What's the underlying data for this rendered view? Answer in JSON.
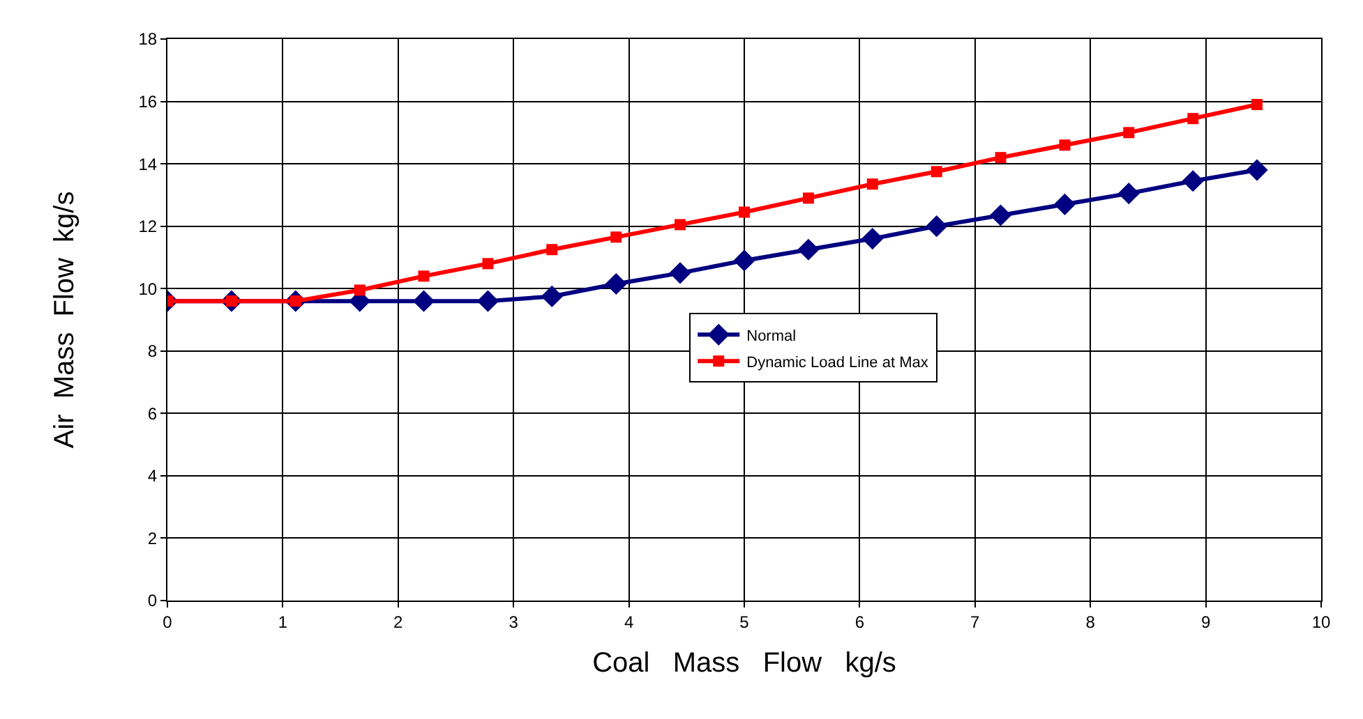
{
  "chart_data": {
    "type": "line",
    "xlabel": "Coal   Mass   Flow   kg/s",
    "ylabel": "Air  Mass  Flow  kg/s",
    "x": [
      0,
      0.556,
      1.111,
      1.667,
      2.222,
      2.778,
      3.333,
      3.889,
      4.444,
      5,
      5.556,
      6.111,
      6.667,
      7.222,
      7.778,
      8.333,
      8.889,
      9.444
    ],
    "series": [
      {
        "name": "Normal",
        "color": "#000080",
        "marker": "diamond",
        "values": [
          9.6,
          9.6,
          9.6,
          9.6,
          9.6,
          9.6,
          9.75,
          10.15,
          10.5,
          10.9,
          11.25,
          11.6,
          12.0,
          12.35,
          12.7,
          13.05,
          13.45,
          13.8
        ]
      },
      {
        "name": "Dynamic Load Line at Max",
        "color": "#ff0000",
        "marker": "square",
        "values": [
          9.6,
          9.6,
          9.6,
          9.95,
          10.4,
          10.8,
          11.25,
          11.65,
          12.05,
          12.45,
          12.9,
          13.35,
          13.75,
          14.2,
          14.6,
          15.0,
          15.45,
          15.9
        ]
      }
    ],
    "xlim": [
      0,
      10
    ],
    "xticks": [
      0,
      1,
      2,
      3,
      4,
      5,
      6,
      7,
      8,
      9,
      10
    ],
    "ylim": [
      0,
      18
    ],
    "yticks": [
      0,
      2,
      4,
      6,
      8,
      10,
      12,
      14,
      16,
      18
    ],
    "grid": true,
    "legend": "center",
    "line_style": "solid"
  }
}
